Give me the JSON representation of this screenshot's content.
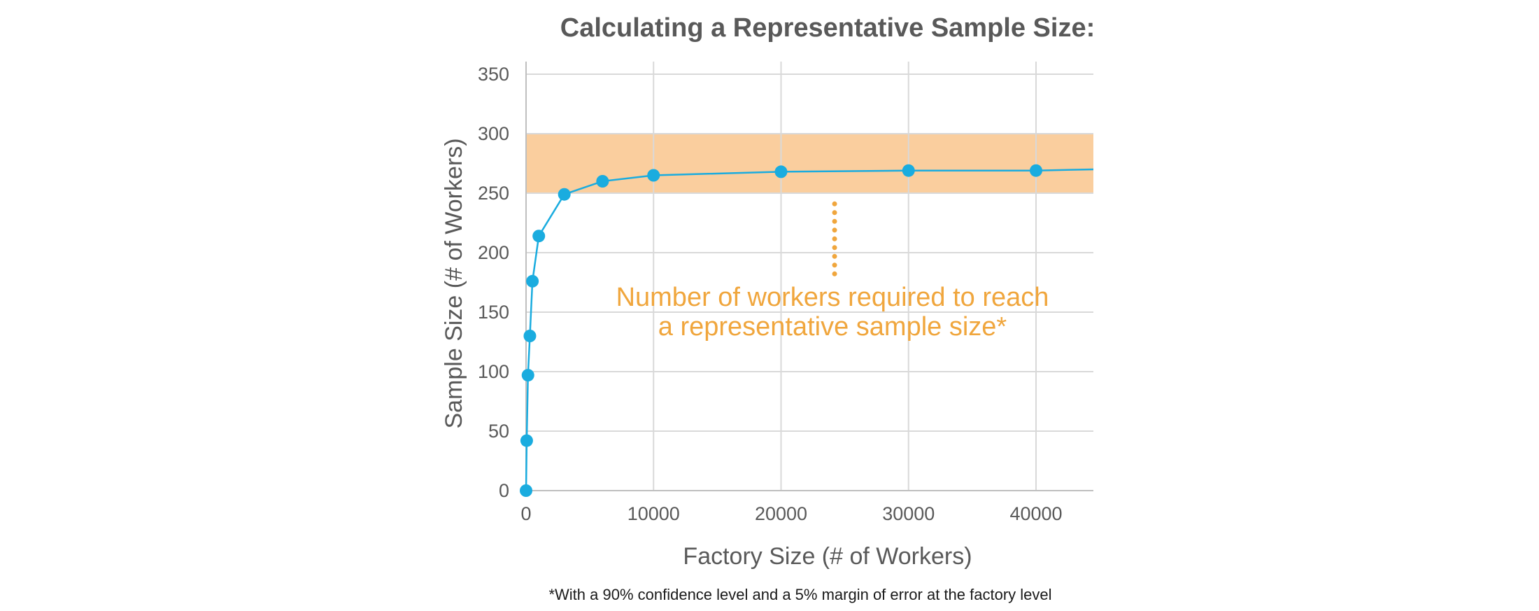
{
  "chart_data": {
    "type": "line",
    "title": "Calculating a Representative Sample Size:",
    "xlabel": "Factory Size (# of Workers)",
    "ylabel": "Sample Size (# of Workers)",
    "xlim": [
      0,
      44500
    ],
    "ylim": [
      0,
      350
    ],
    "xticks": [
      0,
      10000,
      20000,
      30000,
      40000
    ],
    "yticks": [
      0,
      50,
      100,
      150,
      200,
      250,
      300,
      350
    ],
    "grid": true,
    "band": {
      "y_from": 250,
      "y_to": 300,
      "color": "#FACE9E"
    },
    "series": [
      {
        "x": [
          0,
          50,
          150,
          300,
          500,
          1000,
          3000,
          6000,
          10000,
          20000,
          30000,
          40000,
          44500
        ],
        "y": [
          0,
          42,
          97,
          130,
          176,
          214,
          249,
          260,
          265,
          268,
          269,
          269,
          270
        ],
        "color": "#1AACDF"
      }
    ],
    "annotation": {
      "lines": [
        "Number of workers required to reach",
        "a representative sample size*"
      ],
      "color": "#F0A63D"
    },
    "footnote": "*With a 90% confidence level and a 5% margin of error at the factory level"
  }
}
